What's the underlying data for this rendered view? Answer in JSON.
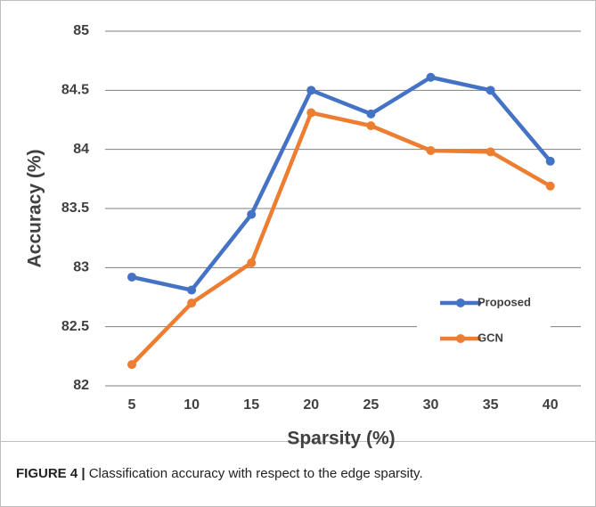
{
  "chart_data": {
    "type": "line",
    "x_label": "Sparsity (%)",
    "y_label": "Accuracy (%)",
    "categories": [
      "5",
      "10",
      "15",
      "20",
      "25",
      "30",
      "35",
      "40"
    ],
    "series": [
      {
        "name": "Proposed",
        "color": "#4472c4",
        "values": [
          82.92,
          82.81,
          83.45,
          84.5,
          84.3,
          84.61,
          84.5,
          83.9
        ]
      },
      {
        "name": "GCN",
        "color": "#ed7d31",
        "values": [
          82.18,
          82.7,
          83.04,
          84.31,
          84.2,
          83.99,
          83.98,
          83.69
        ]
      }
    ],
    "ylim": [
      82,
      85
    ],
    "yticks": [
      82,
      82.5,
      83,
      83.5,
      84,
      84.5,
      85
    ],
    "grid": true,
    "caption_label": "FIGURE 4 |",
    "caption_text": "Classification accuracy with respect to the edge sparsity."
  }
}
